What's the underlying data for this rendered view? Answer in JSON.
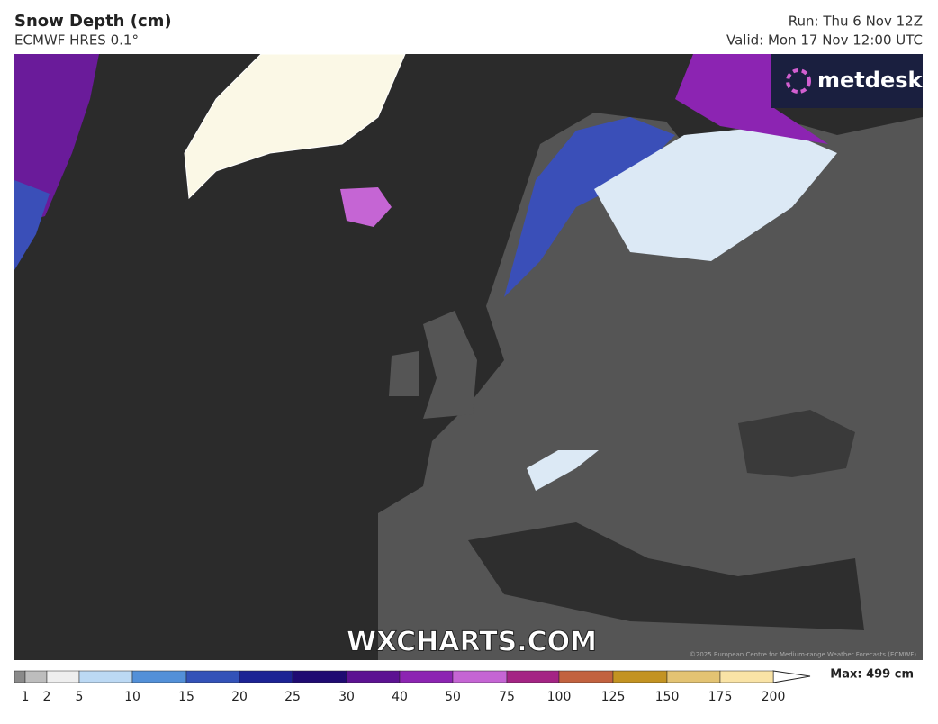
{
  "header": {
    "title": "Snow Depth (cm)",
    "subtitle": "ECMWF HRES 0.1°",
    "run": "Run: Thu 6 Nov 12Z",
    "valid": "Valid: Mon 17 Nov 12:00 UTC"
  },
  "logo": "metdesk",
  "watermark": "WXCHARTS.COM",
  "copyright": "©2025 European Centre for Medium-range Weather Forecasts (ECMWF)",
  "legend": {
    "ticks": [
      1,
      2,
      5,
      10,
      15,
      20,
      25,
      30,
      40,
      50,
      75,
      100,
      125,
      150,
      175,
      200
    ],
    "colors": [
      "#8a8a8a",
      "#bdbdbd",
      "#eeeeee",
      "#bcd9f4",
      "#5390d8",
      "#3352b8",
      "#1c2394",
      "#1f0b72",
      "#5c1292",
      "#8c24b2",
      "#c565d4",
      "#a42484",
      "#c2623f",
      "#c39322",
      "#e3c373",
      "#f9e3a6"
    ],
    "max": "Max: 499 cm"
  }
}
